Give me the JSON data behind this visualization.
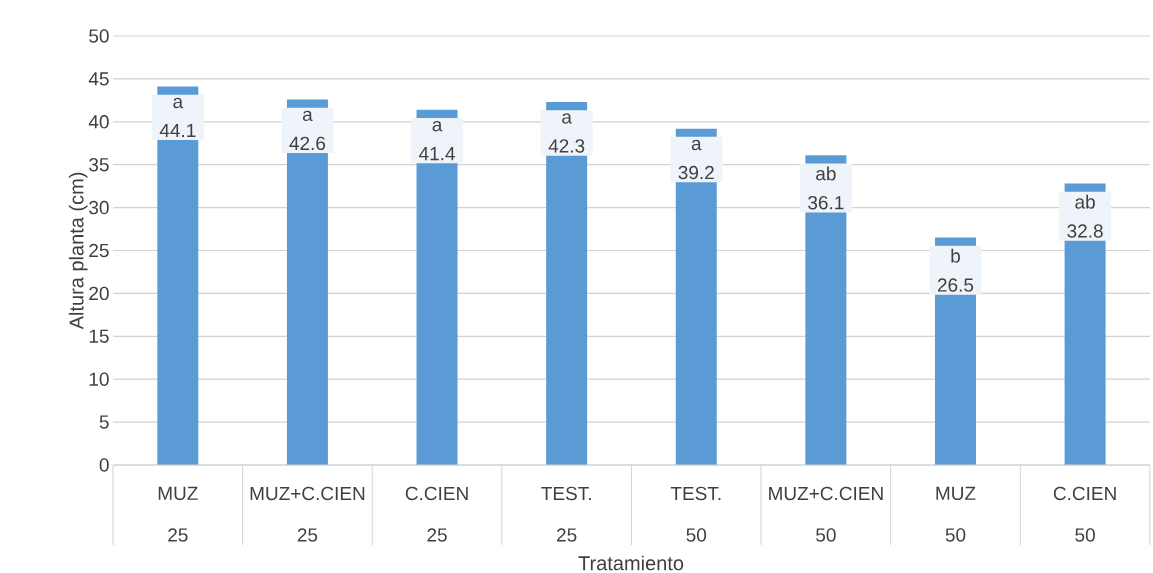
{
  "chart_data": {
    "type": "bar",
    "categories": [
      "MUZ",
      "MUZ+C.CIEN",
      "C.CIEN",
      "TEST.",
      "TEST.",
      "MUZ+C.CIEN",
      "MUZ",
      "C.CIEN"
    ],
    "values": [
      44.1,
      42.6,
      41.4,
      42.3,
      39.2,
      36.1,
      26.5,
      32.8
    ],
    "value_labels": [
      "a 44.1",
      "a 42.6",
      "a 41.4",
      "a 42.3",
      "a 39.2",
      "ab 36.1",
      "b 26.5",
      "ab 32.8"
    ],
    "color": "#5b9bd5",
    "ylim": [
      0,
      50
    ],
    "yticks": [
      0,
      5,
      10,
      15,
      20,
      25,
      30,
      35,
      40,
      45,
      50
    ],
    "grid": "y",
    "ylabel": "Altura planta (cm)",
    "xlabel": "Tratamiento",
    "annotations": [
      "25",
      "25",
      "25",
      "25",
      "50",
      "50",
      "50",
      "50"
    ]
  }
}
